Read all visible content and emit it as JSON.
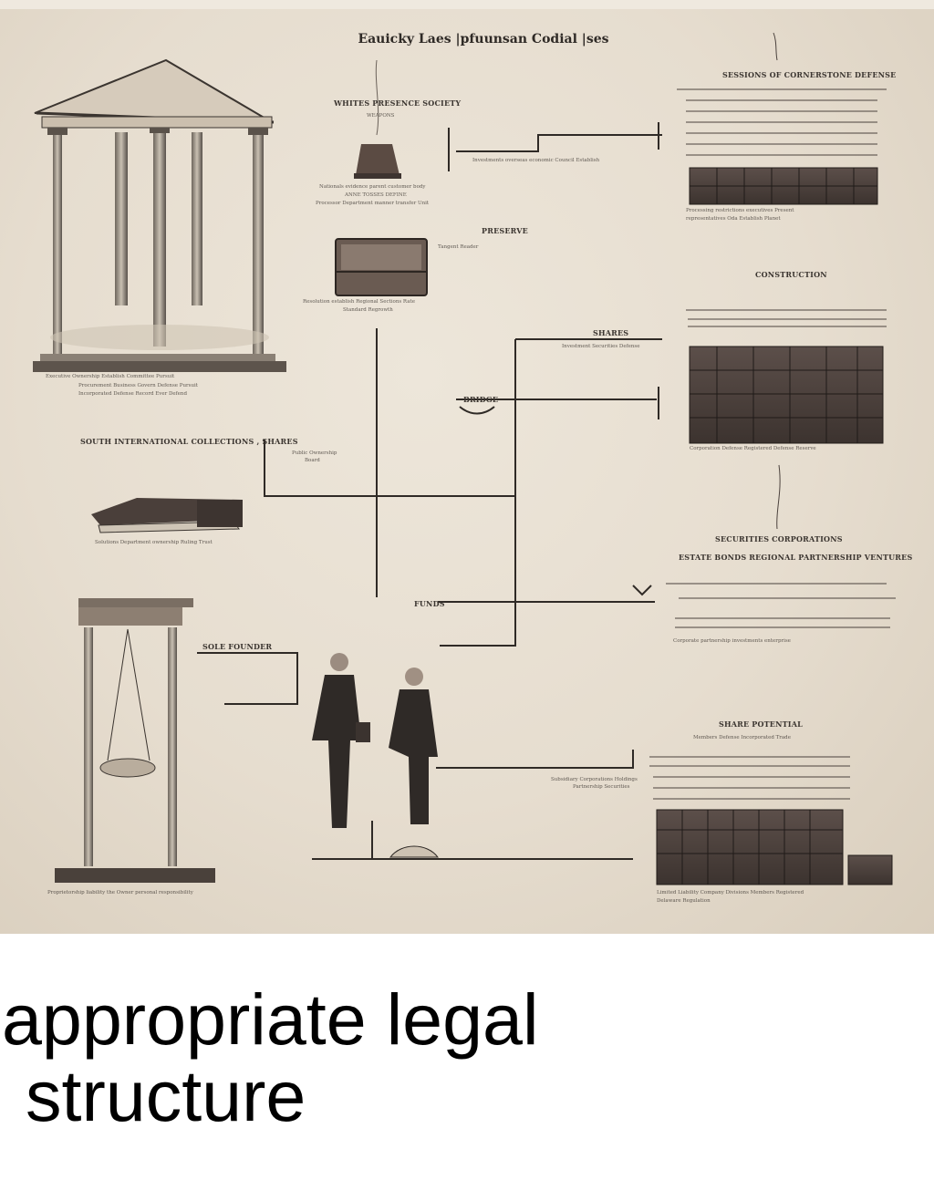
{
  "poster": {
    "title": "Eauicky Laes |pfuunsan Codial |ses",
    "labels": {
      "hdr_top_center": "WHITES PRESENCE SOCIETY",
      "sub_top_center": "WEAPONS",
      "note_top_center_1": "Nationals evidence parent customer body",
      "note_top_center_2": "ANNE TOSSES DEFINE",
      "note_top_center_3": "Processor Department manner transfer Unit",
      "note_top_line": "Investments overseas economic Council Establish",
      "hdr_top_right": "SESSIONS OF CORNERSTONE DEFENSE",
      "note_top_right_1": "Processing restrictions executives Present",
      "note_top_right_2": "representatives Oda Establish Planet",
      "lbl_chest": "PRESERVE",
      "lbl_chest_side": "Tangent Reader",
      "note_chest_1": "Resolution establish Regional Sections Rate",
      "note_chest_2": "Standard Regrowth",
      "hdr_right_mid": "CONSTRUCTION",
      "lbl_share": "SHARES",
      "note_share": "Investment Securities Defense",
      "note_temple_1": "Executive Ownership Establish Committee Pursuit",
      "note_temple_2": "Procurement Business Govern Defense Pursuit",
      "note_temple_3": "Incorporated Defense Record Ever Defend",
      "lbl_bridge": "BRIDGE",
      "note_grid_right": "Corporation Defense Registered Defense Reserve",
      "hdr_book": "SOUTH INTERNATIONAL COLLECTIONS , SHARES",
      "note_mid_box": "Public Ownership",
      "note_mid_box_2": "Board",
      "note_book": "Solutions Department ownership Ruling Trust",
      "hdr_right_lower": "SECURITIES CORPORATIONS",
      "sub_right_lower": "ESTATE BONDS REGIONAL PARTNERSHIP VENTURES",
      "lbl_funds": "FUNDS",
      "note_right_lower": "Corporate partnership investments enterprise",
      "lbl_scale": "SOLE FOUNDER",
      "hdr_right_bottom": "SHARE POTENTIAL",
      "sub_right_bottom": "Members Defense Incorporated Trade",
      "note_right_bottom": "Subsidiary Corporations Holdings",
      "note_right_bottom_2": "Partnership Securities",
      "note_scale": "Proprietorship liability the Owner personal responsibility",
      "note_bottom_right_1": "Limited Liability Company Divisions Members Registered",
      "note_bottom_right_2": "Delaware Regulation"
    }
  },
  "caption": {
    "line1": "appropriate legal",
    "line2": "structure"
  },
  "colors": {
    "paper": "#e6ddcf",
    "ink": "#2f2a26",
    "block": "#4a3f3a"
  }
}
